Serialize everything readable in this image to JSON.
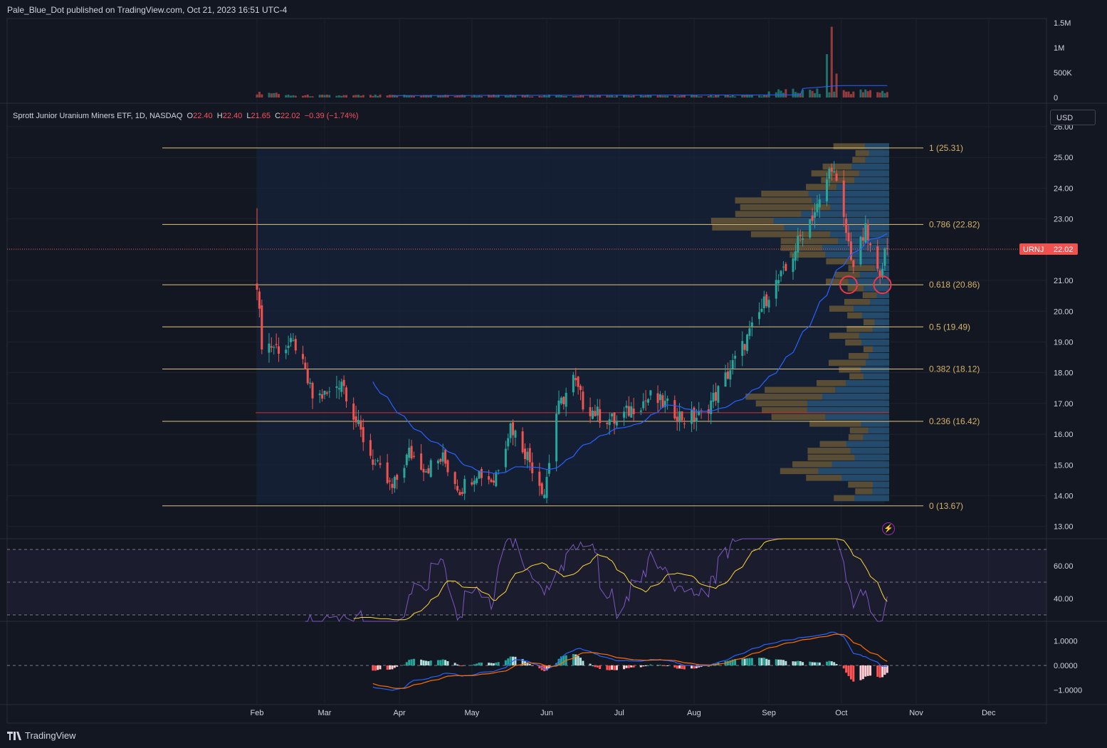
{
  "header": {
    "published": "Pale_Blue_Dot published on TradingView.com, Oct 21, 2023 16:51 UTC-4"
  },
  "legend": {
    "name": "Sprott Junior Uranium Miners ETF, 1D, NASDAQ",
    "o_label": "O",
    "o": "22.40",
    "h_label": "H",
    "h": "22.40",
    "l_label": "L",
    "l": "21.65",
    "c_label": "C",
    "c": "22.02",
    "change": "−0.39 (−1.74%)"
  },
  "currency_button": "USD",
  "footer": {
    "brand": "TradingView"
  },
  "colors": {
    "up": "#26a69a",
    "down": "#ef5350",
    "fib": "#e0c27a",
    "ma": "#2962ff",
    "rsi": "#7e57c2",
    "rsi_ma": "#fdd835",
    "macd": "#2962ff",
    "signal": "#ff6d00",
    "vp_up": "#1e4a72",
    "vp_down": "#6a5a36",
    "support_line": "#d32f2f"
  },
  "icons": {
    "alert": "lightning-icon",
    "logo": "tradingview-logo-icon"
  },
  "chart_data": [
    {
      "type": "candlestick",
      "title": "Sprott Junior Uranium Miners ETF, 1D, NASDAQ",
      "symbol": "URNJ",
      "last_price": 22.02,
      "x_ticks": [
        "Feb",
        "Mar",
        "Apr",
        "May",
        "Jun",
        "Jul",
        "Aug",
        "Sep",
        "Oct",
        "Nov",
        "Dec"
      ],
      "y_ticks": [
        "13.00",
        "14.00",
        "15.00",
        "16.00",
        "17.00",
        "18.00",
        "19.00",
        "20.00",
        "21.00",
        "22.00",
        "23.00",
        "24.00",
        "25.00",
        "26.00"
      ],
      "ylim": [
        12.6,
        26.0
      ],
      "fib_levels": [
        {
          "label": "1 (25.31)",
          "value": 25.31
        },
        {
          "label": "0.786 (22.82)",
          "value": 22.82
        },
        {
          "label": "0.618 (20.86)",
          "value": 20.86
        },
        {
          "label": "0.5 (19.49)",
          "value": 19.49
        },
        {
          "label": "0.382 (18.12)",
          "value": 18.12
        },
        {
          "label": "0.236 (16.42)",
          "value": 16.42
        },
        {
          "label": "0 (13.67)",
          "value": 13.67
        }
      ],
      "support_line": 16.7,
      "circled_points": [
        20.86,
        20.86
      ],
      "approx_close_path": [
        {
          "date": "2023-02-01",
          "close": 20.7
        },
        {
          "date": "2023-02-03",
          "close": 19.0
        },
        {
          "date": "2023-02-10",
          "close": 18.8
        },
        {
          "date": "2023-02-17",
          "close": 18.9
        },
        {
          "date": "2023-02-24",
          "close": 17.2
        },
        {
          "date": "2023-03-03",
          "close": 17.3
        },
        {
          "date": "2023-03-08",
          "close": 17.8
        },
        {
          "date": "2023-03-15",
          "close": 16.2
        },
        {
          "date": "2023-03-22",
          "close": 15.0
        },
        {
          "date": "2023-03-29",
          "close": 14.2
        },
        {
          "date": "2023-04-05",
          "close": 15.4
        },
        {
          "date": "2023-04-12",
          "close": 14.9
        },
        {
          "date": "2023-04-19",
          "close": 15.2
        },
        {
          "date": "2023-04-26",
          "close": 14.2
        },
        {
          "date": "2023-05-03",
          "close": 14.8
        },
        {
          "date": "2023-05-10",
          "close": 14.5
        },
        {
          "date": "2023-05-17",
          "close": 16.3
        },
        {
          "date": "2023-05-24",
          "close": 15.3
        },
        {
          "date": "2023-05-31",
          "close": 14.1
        },
        {
          "date": "2023-06-05",
          "close": 16.7
        },
        {
          "date": "2023-06-12",
          "close": 17.8
        },
        {
          "date": "2023-06-16",
          "close": 17.0
        },
        {
          "date": "2023-06-23",
          "close": 16.6
        },
        {
          "date": "2023-06-30",
          "close": 16.4
        },
        {
          "date": "2023-07-07",
          "close": 16.9
        },
        {
          "date": "2023-07-14",
          "close": 17.2
        },
        {
          "date": "2023-07-21",
          "close": 16.9
        },
        {
          "date": "2023-07-28",
          "close": 16.5
        },
        {
          "date": "2023-08-04",
          "close": 16.6
        },
        {
          "date": "2023-08-11",
          "close": 17.4
        },
        {
          "date": "2023-08-18",
          "close": 18.4
        },
        {
          "date": "2023-08-25",
          "close": 19.4
        },
        {
          "date": "2023-09-01",
          "close": 20.6
        },
        {
          "date": "2023-09-08",
          "close": 21.3
        },
        {
          "date": "2023-09-15",
          "close": 22.6
        },
        {
          "date": "2023-09-22",
          "close": 23.5
        },
        {
          "date": "2023-09-27",
          "close": 24.8
        },
        {
          "date": "2023-10-02",
          "close": 22.9
        },
        {
          "date": "2023-10-06",
          "close": 21.5
        },
        {
          "date": "2023-10-11",
          "close": 22.6
        },
        {
          "date": "2023-10-16",
          "close": 21.2
        },
        {
          "date": "2023-10-20",
          "close": 22.02
        }
      ]
    },
    {
      "type": "bar",
      "title": "Volume",
      "y_ticks": [
        "0",
        "500K",
        "1M",
        "1.5M"
      ],
      "ylim": [
        0,
        1500000
      ],
      "spikes": [
        {
          "date": "2023-09-25",
          "value": 870000
        },
        {
          "date": "2023-09-27",
          "value": 1420000
        },
        {
          "date": "2023-09-29",
          "value": 480000
        }
      ]
    },
    {
      "type": "line",
      "title": "RSI",
      "y_ticks": [
        "40.00",
        "60.00"
      ],
      "bands": [
        30,
        70
      ]
    },
    {
      "type": "line",
      "title": "MACD",
      "y_ticks": [
        "1.0000",
        "0.0000",
        "−1.0000"
      ]
    }
  ]
}
